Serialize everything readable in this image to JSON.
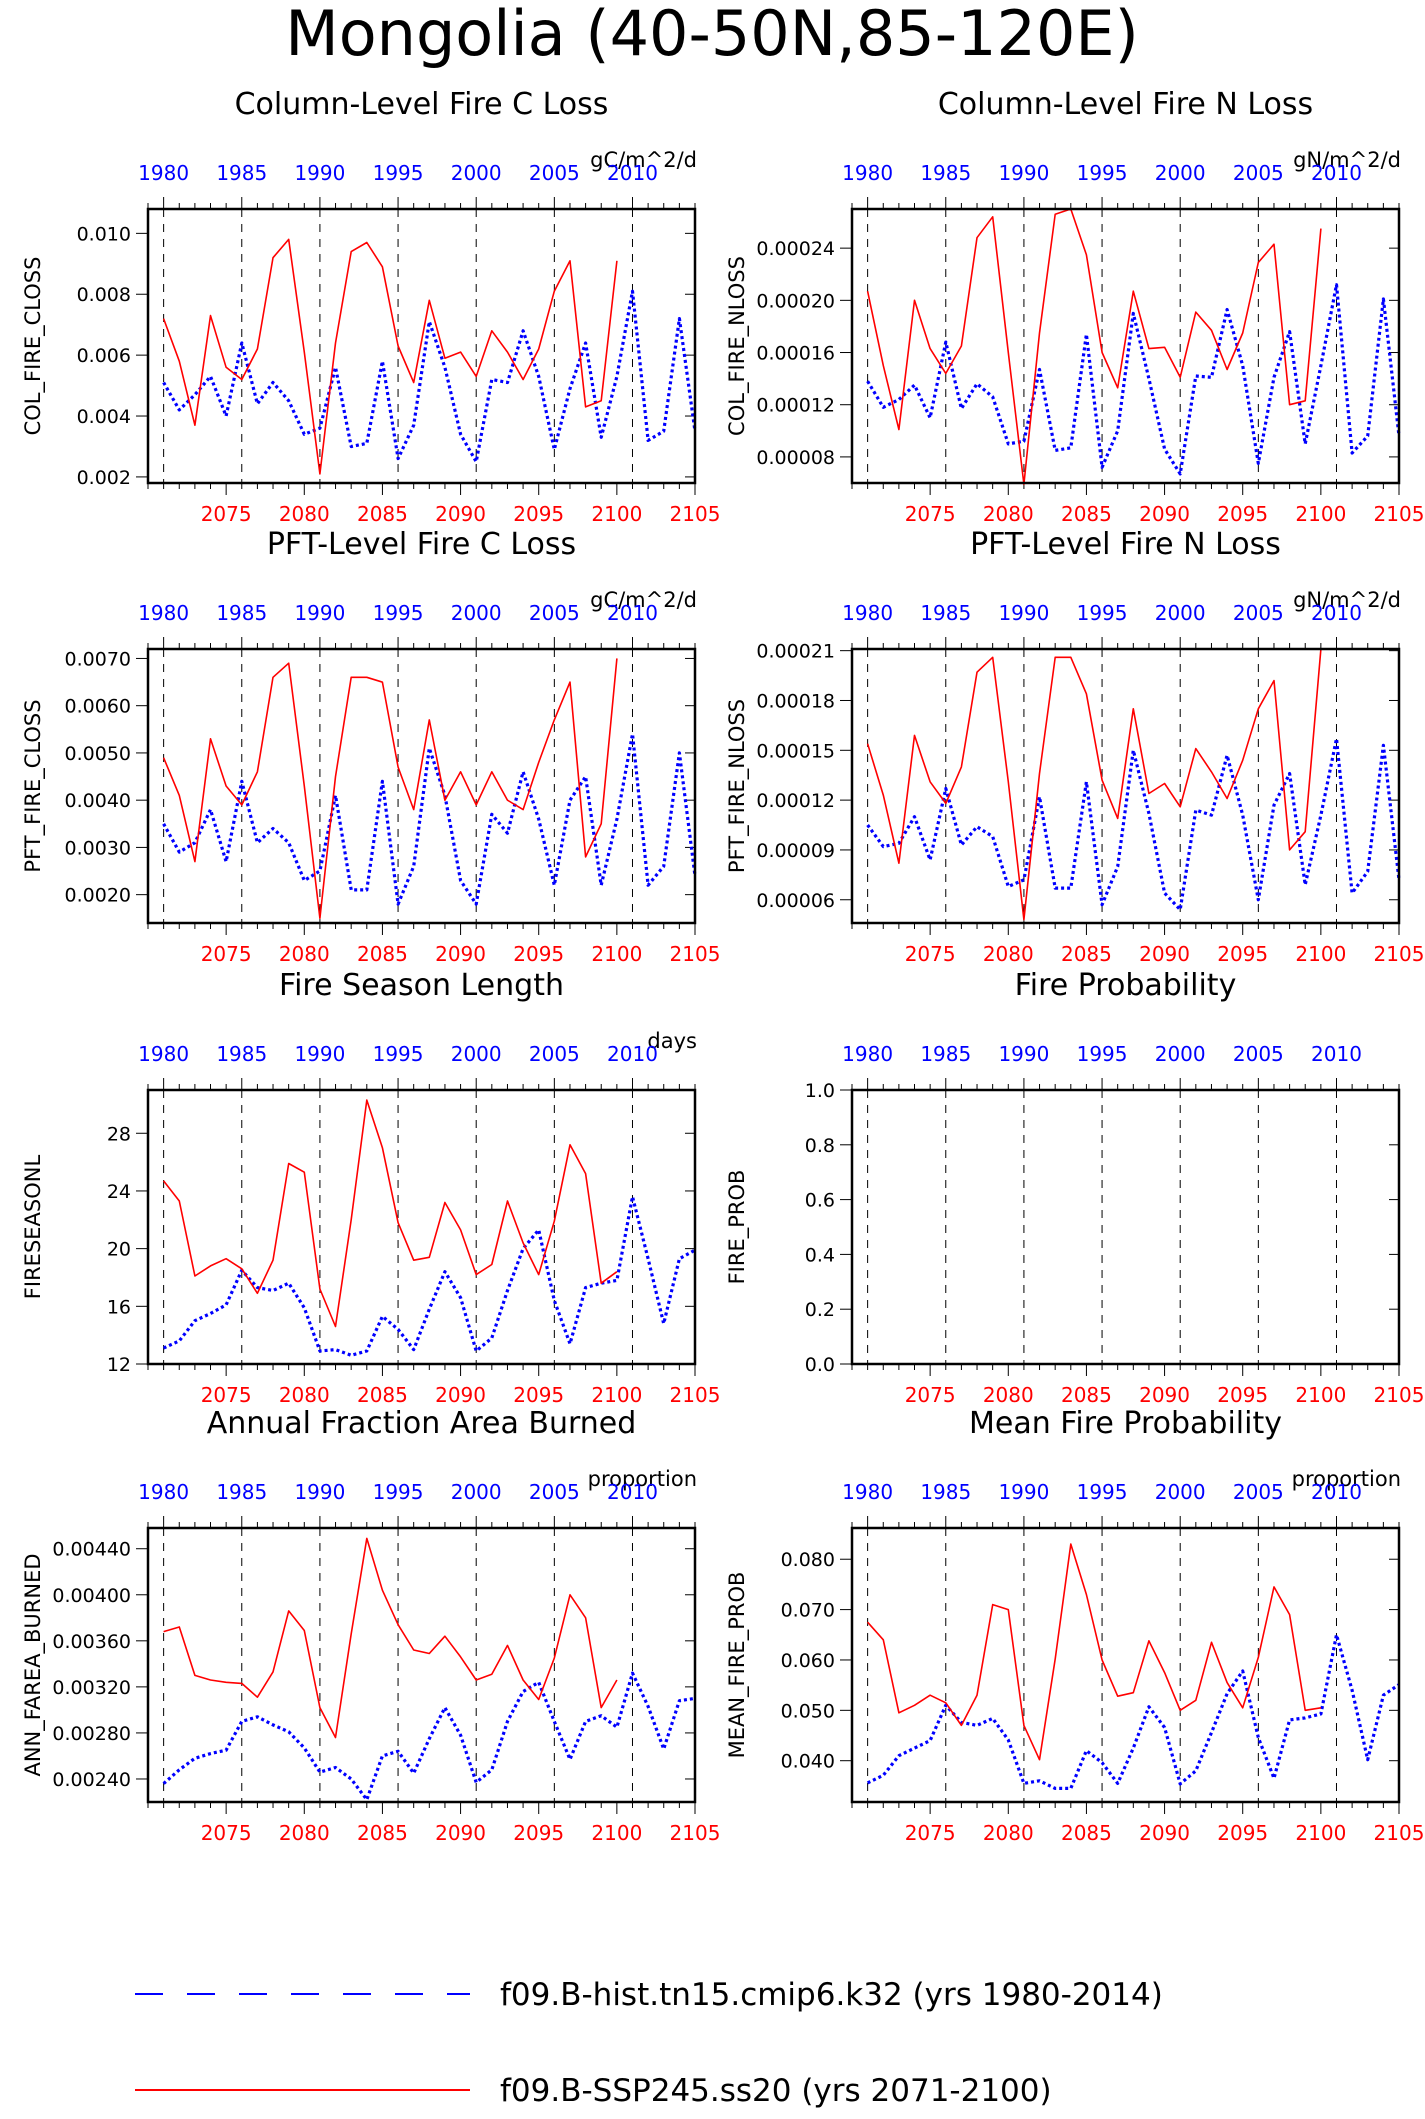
{
  "title": "Mongolia (40-50N,85-120E)",
  "colors": {
    "hist": "#0000ff",
    "ssp": "#ff0000",
    "frame": "#000000",
    "gridline": "#000000"
  },
  "legend": {
    "entries": [
      {
        "label": "f09.B-hist.tn15.cmip6.k32 (yrs 1980-2014)",
        "color": "#0000ff",
        "style": "dashed"
      },
      {
        "label": "f09.B-SSP245.ss20 (yrs 2071-2100)",
        "color": "#ff0000",
        "style": "solid"
      }
    ]
  },
  "chart_data": [
    {
      "type": "line",
      "title": "Column-Level Fire C Loss",
      "units": "gC/m^2/d",
      "ylabel": "COL_FIRE_CLOSS",
      "ylim": [
        0.0018,
        0.0108
      ],
      "yticks": [
        "0.002",
        "0.004",
        "0.006",
        "0.008",
        "0.010"
      ],
      "ytick_values": [
        0.002,
        0.004,
        0.006,
        0.008,
        0.01
      ],
      "x_top": {
        "label_years": [
          "1980",
          "1985",
          "1990",
          "1995",
          "2000",
          "2005",
          "2010"
        ],
        "range": [
          1979,
          2014
        ]
      },
      "x_bottom": {
        "label_years": [
          "2075",
          "2080",
          "2085",
          "2090",
          "2095",
          "2100",
          "2105"
        ],
        "range": [
          2070,
          2105
        ]
      },
      "series": [
        {
          "name": "f09.B-hist.tn15.cmip6.k32 (yrs 1980-2014)",
          "axis": "top",
          "x_start": 1980,
          "values": [
            0.0051,
            0.0042,
            0.0047,
            0.0053,
            0.004,
            0.0064,
            0.0044,
            0.0051,
            0.0045,
            0.0034,
            0.0036,
            0.0056,
            0.003,
            0.0031,
            0.0058,
            0.0026,
            0.0037,
            0.0071,
            0.0056,
            0.0034,
            0.0025,
            0.0052,
            0.0051,
            0.0068,
            0.0053,
            0.0029,
            0.0049,
            0.0064,
            0.0033,
            0.0053,
            0.0081,
            0.0032,
            0.0035,
            0.0072,
            0.0035
          ]
        },
        {
          "name": "f09.B-SSP245.ss20 (yrs 2071-2100)",
          "axis": "bottom",
          "x_start": 2071,
          "values": [
            0.0072,
            0.0058,
            0.0037,
            0.0073,
            0.0056,
            0.0052,
            0.0062,
            0.0092,
            0.0098,
            0.0061,
            0.0021,
            0.0064,
            0.0094,
            0.0097,
            0.0089,
            0.0063,
            0.0051,
            0.0078,
            0.0059,
            0.0061,
            0.0053,
            0.0068,
            0.0061,
            0.0052,
            0.0062,
            0.0081,
            0.0091,
            0.0043,
            0.0045,
            0.0091
          ]
        }
      ]
    },
    {
      "type": "line",
      "title": "Column-Level Fire N Loss",
      "units": "gN/m^2/d",
      "ylabel": "COL_FIRE_NLOSS",
      "ylim": [
        6e-05,
        0.00027
      ],
      "yticks": [
        "0.00008",
        "0.00012",
        "0.00016",
        "0.00020",
        "0.00024"
      ],
      "ytick_values": [
        8e-05,
        0.00012,
        0.00016,
        0.0002,
        0.00024
      ],
      "x_top": {
        "label_years": [
          "1980",
          "1985",
          "1990",
          "1995",
          "2000",
          "2005",
          "2010"
        ],
        "range": [
          1979,
          2014
        ]
      },
      "x_bottom": {
        "label_years": [
          "2075",
          "2080",
          "2085",
          "2090",
          "2095",
          "2100",
          "2105"
        ],
        "range": [
          2070,
          2105
        ]
      },
      "series": [
        {
          "name": "f09.B-hist.tn15.cmip6.k32 (yrs 1980-2014)",
          "axis": "top",
          "x_start": 1980,
          "values": [
            0.000138,
            0.000118,
            0.000124,
            0.000135,
            0.00011,
            0.000168,
            0.000117,
            0.000136,
            0.000126,
            9e-05,
            9.2e-05,
            0.000147,
            8.5e-05,
            8.7e-05,
            0.000174,
            7.2e-05,
            0.0001,
            0.00019,
            0.00014,
            8.6e-05,
            6.7e-05,
            0.000142,
            0.000141,
            0.000193,
            0.00015,
            7.5e-05,
            0.000141,
            0.000176,
            9e-05,
            0.00015,
            0.000212,
            8.3e-05,
            9.6e-05,
            0.000201,
            9.6e-05
          ]
        },
        {
          "name": "f09.B-SSP245.ss20 (yrs 2071-2100)",
          "axis": "bottom",
          "x_start": 2071,
          "values": [
            0.000207,
            0.00015,
            0.000101,
            0.0002,
            0.000163,
            0.000144,
            0.000165,
            0.000248,
            0.000264,
            0.00016,
            5.9e-05,
            0.000175,
            0.000266,
            0.00027,
            0.000235,
            0.00016,
            0.000133,
            0.000207,
            0.000163,
            0.000164,
            0.000141,
            0.000191,
            0.000177,
            0.000147,
            0.000175,
            0.000229,
            0.000243,
            0.00012,
            0.000123,
            0.000255
          ]
        }
      ]
    },
    {
      "type": "line",
      "title": "PFT-Level Fire C Loss",
      "units": "gC/m^2/d",
      "ylabel": "PFT_FIRE_CLOSS",
      "ylim": [
        0.0014,
        0.0072
      ],
      "yticks": [
        "0.0020",
        "0.0030",
        "0.0040",
        "0.0050",
        "0.0060",
        "0.0070"
      ],
      "ytick_values": [
        0.002,
        0.003,
        0.004,
        0.005,
        0.006,
        0.007
      ],
      "x_top": {
        "label_years": [
          "1980",
          "1985",
          "1990",
          "1995",
          "2000",
          "2005",
          "2010"
        ],
        "range": [
          1979,
          2014
        ]
      },
      "x_bottom": {
        "label_years": [
          "2075",
          "2080",
          "2085",
          "2090",
          "2095",
          "2100",
          "2105"
        ],
        "range": [
          2070,
          2105
        ]
      },
      "series": [
        {
          "name": "f09.B-hist.tn15.cmip6.k32 (yrs 1980-2014)",
          "axis": "top",
          "x_start": 1980,
          "values": [
            0.0035,
            0.0029,
            0.0031,
            0.0038,
            0.0027,
            0.0044,
            0.0031,
            0.0034,
            0.0031,
            0.0023,
            0.0025,
            0.0041,
            0.0021,
            0.0021,
            0.0044,
            0.0018,
            0.0026,
            0.0051,
            0.0041,
            0.0023,
            0.0018,
            0.0037,
            0.0033,
            0.0046,
            0.0036,
            0.0022,
            0.004,
            0.0045,
            0.0022,
            0.0036,
            0.0054,
            0.0022,
            0.0026,
            0.005,
            0.0024
          ]
        },
        {
          "name": "f09.B-SSP245.ss20 (yrs 2071-2100)",
          "axis": "bottom",
          "x_start": 2071,
          "values": [
            0.0049,
            0.0041,
            0.0027,
            0.0053,
            0.0043,
            0.0039,
            0.0046,
            0.0066,
            0.0069,
            0.0043,
            0.0015,
            0.0045,
            0.0066,
            0.0066,
            0.0065,
            0.0047,
            0.0038,
            0.0057,
            0.004,
            0.0046,
            0.0039,
            0.0046,
            0.004,
            0.0038,
            0.0048,
            0.0057,
            0.0065,
            0.0028,
            0.0035,
            0.007
          ]
        }
      ]
    },
    {
      "type": "line",
      "title": "PFT-Level Fire N Loss",
      "units": "gN/m^2/d",
      "ylabel": "PFT_FIRE_NLOSS",
      "ylim": [
        4.6e-05,
        0.000211
      ],
      "yticks": [
        "0.00006",
        "0.00009",
        "0.00012",
        "0.00015",
        "0.00018",
        "0.00021"
      ],
      "ytick_values": [
        6e-05,
        9e-05,
        0.00012,
        0.00015,
        0.00018,
        0.00021
      ],
      "x_top": {
        "label_years": [
          "1980",
          "1985",
          "1990",
          "1995",
          "2000",
          "2005",
          "2010"
        ],
        "range": [
          1979,
          2014
        ]
      },
      "x_bottom": {
        "label_years": [
          "2075",
          "2080",
          "2085",
          "2090",
          "2095",
          "2100",
          "2105"
        ],
        "range": [
          2070,
          2105
        ]
      },
      "series": [
        {
          "name": "f09.B-hist.tn15.cmip6.k32 (yrs 1980-2014)",
          "axis": "top",
          "x_start": 1980,
          "values": [
            0.000105,
            9.2e-05,
            9.4e-05,
            0.00011,
            8.4e-05,
            0.000127,
            9.3e-05,
            0.000104,
            9.8e-05,
            6.8e-05,
            7.2e-05,
            0.000122,
            6.7e-05,
            6.7e-05,
            0.000131,
            5.7e-05,
            8e-05,
            0.00015,
            0.000112,
            6.4e-05,
            5.4e-05,
            0.000114,
            0.000111,
            0.000147,
            0.000111,
            6e-05,
            0.000117,
            0.000136,
            6.9e-05,
            0.000111,
            0.000157,
            6.4e-05,
            7.7e-05,
            0.000153,
            7.2e-05
          ]
        },
        {
          "name": "f09.B-SSP245.ss20 (yrs 2071-2100)",
          "axis": "bottom",
          "x_start": 2071,
          "values": [
            0.000154,
            0.000123,
            8.2e-05,
            0.000159,
            0.000131,
            0.000118,
            0.00014,
            0.000197,
            0.000206,
            0.000131,
            4.8e-05,
            0.000136,
            0.000206,
            0.000206,
            0.000184,
            0.000132,
            0.000109,
            0.000175,
            0.000124,
            0.00013,
            0.000116,
            0.000151,
            0.000137,
            0.000121,
            0.000144,
            0.000175,
            0.000192,
            9e-05,
            0.000101,
            0.000211
          ]
        }
      ]
    },
    {
      "type": "line",
      "title": "Fire Season Length",
      "units": "days",
      "ylabel": "FIRESEASONL",
      "ylim": [
        12,
        31
      ],
      "yticks": [
        "12",
        "16",
        "20",
        "24",
        "28"
      ],
      "ytick_values": [
        12,
        16,
        20,
        24,
        28
      ],
      "x_top": {
        "label_years": [
          "1980",
          "1985",
          "1990",
          "1995",
          "2000",
          "2005",
          "2010"
        ],
        "range": [
          1979,
          2014
        ]
      },
      "x_bottom": {
        "label_years": [
          "2075",
          "2080",
          "2085",
          "2090",
          "2095",
          "2100",
          "2105"
        ],
        "range": [
          2070,
          2105
        ]
      },
      "series": [
        {
          "name": "f09.B-hist.tn15.cmip6.k32 (yrs 1980-2014)",
          "axis": "top",
          "x_start": 1980,
          "values": [
            13.1,
            13.6,
            15.0,
            15.5,
            16.1,
            18.5,
            17.3,
            17.1,
            17.6,
            15.9,
            12.9,
            13.0,
            12.6,
            12.9,
            15.3,
            14.4,
            13.0,
            15.8,
            18.4,
            16.6,
            12.9,
            13.8,
            17.1,
            20.0,
            21.3,
            16.4,
            13.4,
            17.3,
            17.6,
            17.8,
            23.6,
            19.3,
            14.8,
            19.3,
            19.9
          ]
        },
        {
          "name": "f09.B-SSP245.ss20 (yrs 2071-2100)",
          "axis": "bottom",
          "x_start": 2071,
          "values": [
            24.7,
            23.3,
            18.1,
            18.8,
            19.3,
            18.6,
            16.9,
            19.2,
            25.9,
            25.3,
            17.2,
            14.6,
            22.0,
            30.3,
            27.0,
            21.8,
            19.2,
            19.4,
            23.2,
            21.3,
            18.2,
            18.9,
            23.3,
            20.4,
            18.2,
            21.9,
            27.2,
            25.2,
            17.6,
            18.4
          ]
        }
      ]
    },
    {
      "type": "line",
      "title": "Fire Probability",
      "units": "",
      "ylabel": "FIRE_PROB",
      "ylim": [
        0,
        1
      ],
      "yticks": [
        "0.0",
        "0.2",
        "0.4",
        "0.6",
        "0.8",
        "1.0"
      ],
      "ytick_values": [
        0,
        0.2,
        0.4,
        0.6,
        0.8,
        1.0
      ],
      "x_top": {
        "label_years": [
          "1980",
          "1985",
          "1990",
          "1995",
          "2000",
          "2005",
          "2010"
        ],
        "range": [
          1979,
          2014
        ]
      },
      "x_bottom": {
        "label_years": [
          "2075",
          "2080",
          "2085",
          "2090",
          "2095",
          "2100",
          "2105"
        ],
        "range": [
          2070,
          2105
        ]
      },
      "series": []
    },
    {
      "type": "line",
      "title": "Annual Fraction Area Burned",
      "units": "proportion",
      "ylabel": "ANN_FAREA_BURNED",
      "ylim": [
        0.0022,
        0.00458
      ],
      "yticks": [
        "0.00240",
        "0.00280",
        "0.00320",
        "0.00360",
        "0.00400",
        "0.00440"
      ],
      "ytick_values": [
        0.0024,
        0.0028,
        0.0032,
        0.0036,
        0.004,
        0.0044
      ],
      "x_top": {
        "label_years": [
          "1980",
          "1985",
          "1990",
          "1995",
          "2000",
          "2005",
          "2010"
        ],
        "range": [
          1979,
          2014
        ]
      },
      "x_bottom": {
        "label_years": [
          "2075",
          "2080",
          "2085",
          "2090",
          "2095",
          "2100",
          "2105"
        ],
        "range": [
          2070,
          2105
        ]
      },
      "series": [
        {
          "name": "f09.B-hist.tn15.cmip6.k32 (yrs 1980-2014)",
          "axis": "top",
          "x_start": 1980,
          "values": [
            0.00236,
            0.00248,
            0.00258,
            0.00262,
            0.00265,
            0.0029,
            0.00294,
            0.00287,
            0.00281,
            0.00267,
            0.00246,
            0.0025,
            0.0024,
            0.00222,
            0.0026,
            0.00264,
            0.00245,
            0.00275,
            0.00302,
            0.00278,
            0.00237,
            0.00248,
            0.0029,
            0.00316,
            0.00324,
            0.0029,
            0.00257,
            0.0029,
            0.00295,
            0.00285,
            0.00332,
            0.00303,
            0.00266,
            0.00308,
            0.0031
          ]
        },
        {
          "name": "f09.B-SSP245.ss20 (yrs 2071-2100)",
          "axis": "bottom",
          "x_start": 2071,
          "values": [
            0.00368,
            0.00372,
            0.0033,
            0.00326,
            0.00324,
            0.00323,
            0.00311,
            0.00333,
            0.00386,
            0.00369,
            0.00302,
            0.00276,
            0.00366,
            0.00449,
            0.00404,
            0.00374,
            0.00352,
            0.00349,
            0.00364,
            0.00346,
            0.00326,
            0.00331,
            0.00356,
            0.00326,
            0.00309,
            0.00345,
            0.004,
            0.0038,
            0.00302,
            0.00326
          ]
        }
      ]
    },
    {
      "type": "line",
      "title": "Mean Fire Probability",
      "units": "proportion",
      "ylabel": "MEAN_FIRE_PROB",
      "ylim": [
        0.0318,
        0.0862
      ],
      "yticks": [
        "0.040",
        "0.050",
        "0.060",
        "0.070",
        "0.080"
      ],
      "ytick_values": [
        0.04,
        0.05,
        0.06,
        0.07,
        0.08
      ],
      "x_top": {
        "label_years": [
          "1980",
          "1985",
          "1990",
          "1995",
          "2000",
          "2005",
          "2010"
        ],
        "range": [
          1979,
          2014
        ]
      },
      "x_bottom": {
        "label_years": [
          "2075",
          "2080",
          "2085",
          "2090",
          "2095",
          "2100",
          "2105"
        ],
        "range": [
          2070,
          2105
        ]
      },
      "series": [
        {
          "name": "f09.B-hist.tn15.cmip6.k32 (yrs 1980-2014)",
          "axis": "top",
          "x_start": 1980,
          "values": [
            0.0356,
            0.0371,
            0.041,
            0.0425,
            0.044,
            0.051,
            0.0476,
            0.047,
            0.0484,
            0.0441,
            0.0355,
            0.036,
            0.0345,
            0.0345,
            0.042,
            0.0396,
            0.0355,
            0.0425,
            0.0507,
            0.0466,
            0.0354,
            0.038,
            0.0456,
            0.0533,
            0.0578,
            0.0446,
            0.0365,
            0.0481,
            0.0485,
            0.0493,
            0.065,
            0.054,
            0.0402,
            0.053,
            0.0551
          ]
        },
        {
          "name": "f09.B-SSP245.ss20 (yrs 2071-2100)",
          "axis": "bottom",
          "x_start": 2071,
          "values": [
            0.0675,
            0.064,
            0.0495,
            0.051,
            0.053,
            0.0515,
            0.047,
            0.053,
            0.071,
            0.07,
            0.047,
            0.0402,
            0.0602,
            0.083,
            0.073,
            0.06,
            0.0528,
            0.0535,
            0.0638,
            0.0575,
            0.05,
            0.052,
            0.0635,
            0.0555,
            0.0505,
            0.0605,
            0.0745,
            0.069,
            0.05,
            0.0505
          ]
        }
      ]
    }
  ]
}
